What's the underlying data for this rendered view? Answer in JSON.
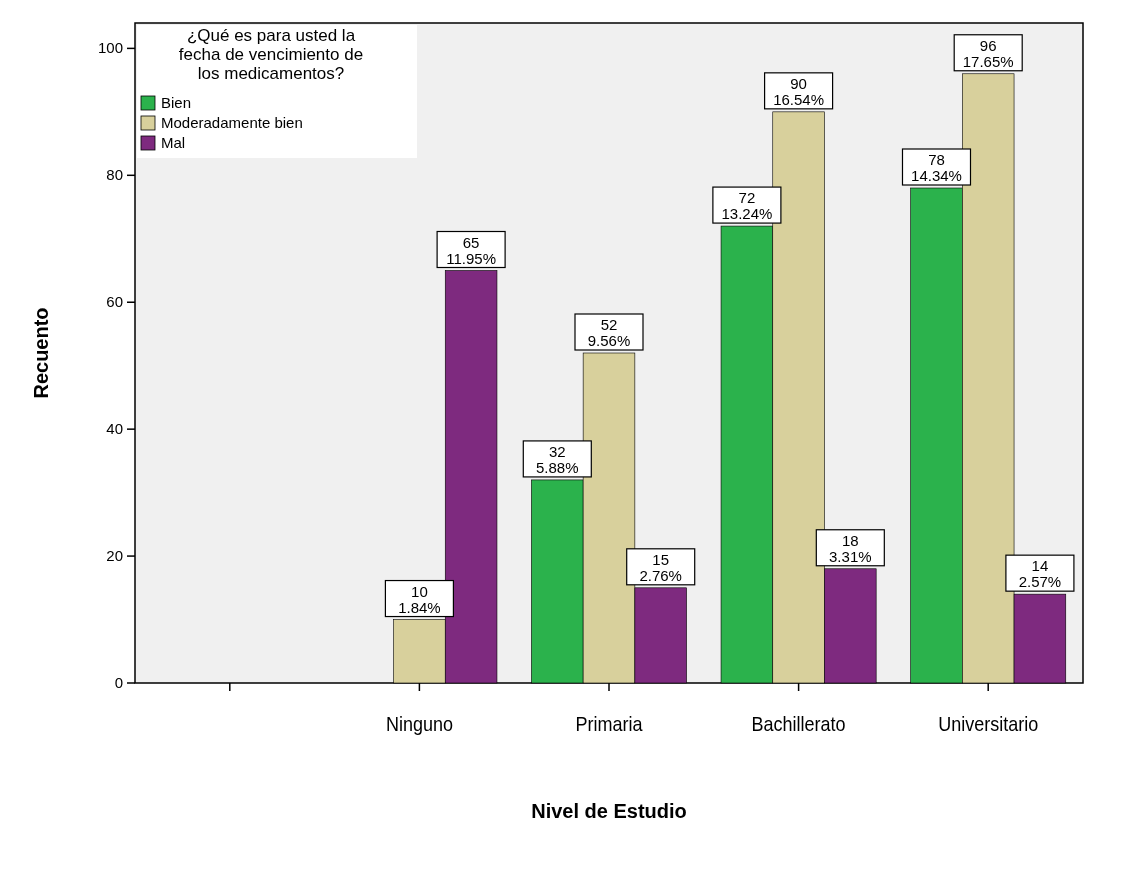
{
  "chart_data": {
    "type": "bar",
    "xlabel": "Nivel de Estudio",
    "ylabel": "Recuento",
    "legend_title": "¿Qué es para usted la fecha de vencimiento de los medicamentos?",
    "legend": "top left",
    "categories": [
      null,
      "Ninguno",
      "Primaria",
      "Bachillerato",
      "Universitario"
    ],
    "series": [
      {
        "name": "Bien",
        "color": "#2bb24c",
        "values": [
          null,
          null,
          32,
          72,
          78
        ],
        "value_labels": [
          null,
          null,
          "32\n5.88%",
          "72\n13.24%",
          "78\n14.34%"
        ]
      },
      {
        "name": "Moderadamente bien",
        "color": "#d8d09c",
        "values": [
          null,
          10,
          52,
          90,
          96
        ],
        "value_labels": [
          null,
          "10\n1.84%",
          "52\n9.56%",
          "90\n16.54%",
          "96\n17.65%"
        ]
      },
      {
        "name": "Mal",
        "color": "#7e2a7f",
        "values": [
          null,
          65,
          15,
          18,
          14
        ],
        "value_labels": [
          null,
          "65\n11.95%",
          "15\n2.76%",
          "18\n3.31%",
          "14\n2.57%"
        ]
      }
    ],
    "ylim": [
      0,
      104
    ],
    "yticks": [
      0,
      20,
      40,
      60,
      80,
      100
    ],
    "grid": false
  }
}
